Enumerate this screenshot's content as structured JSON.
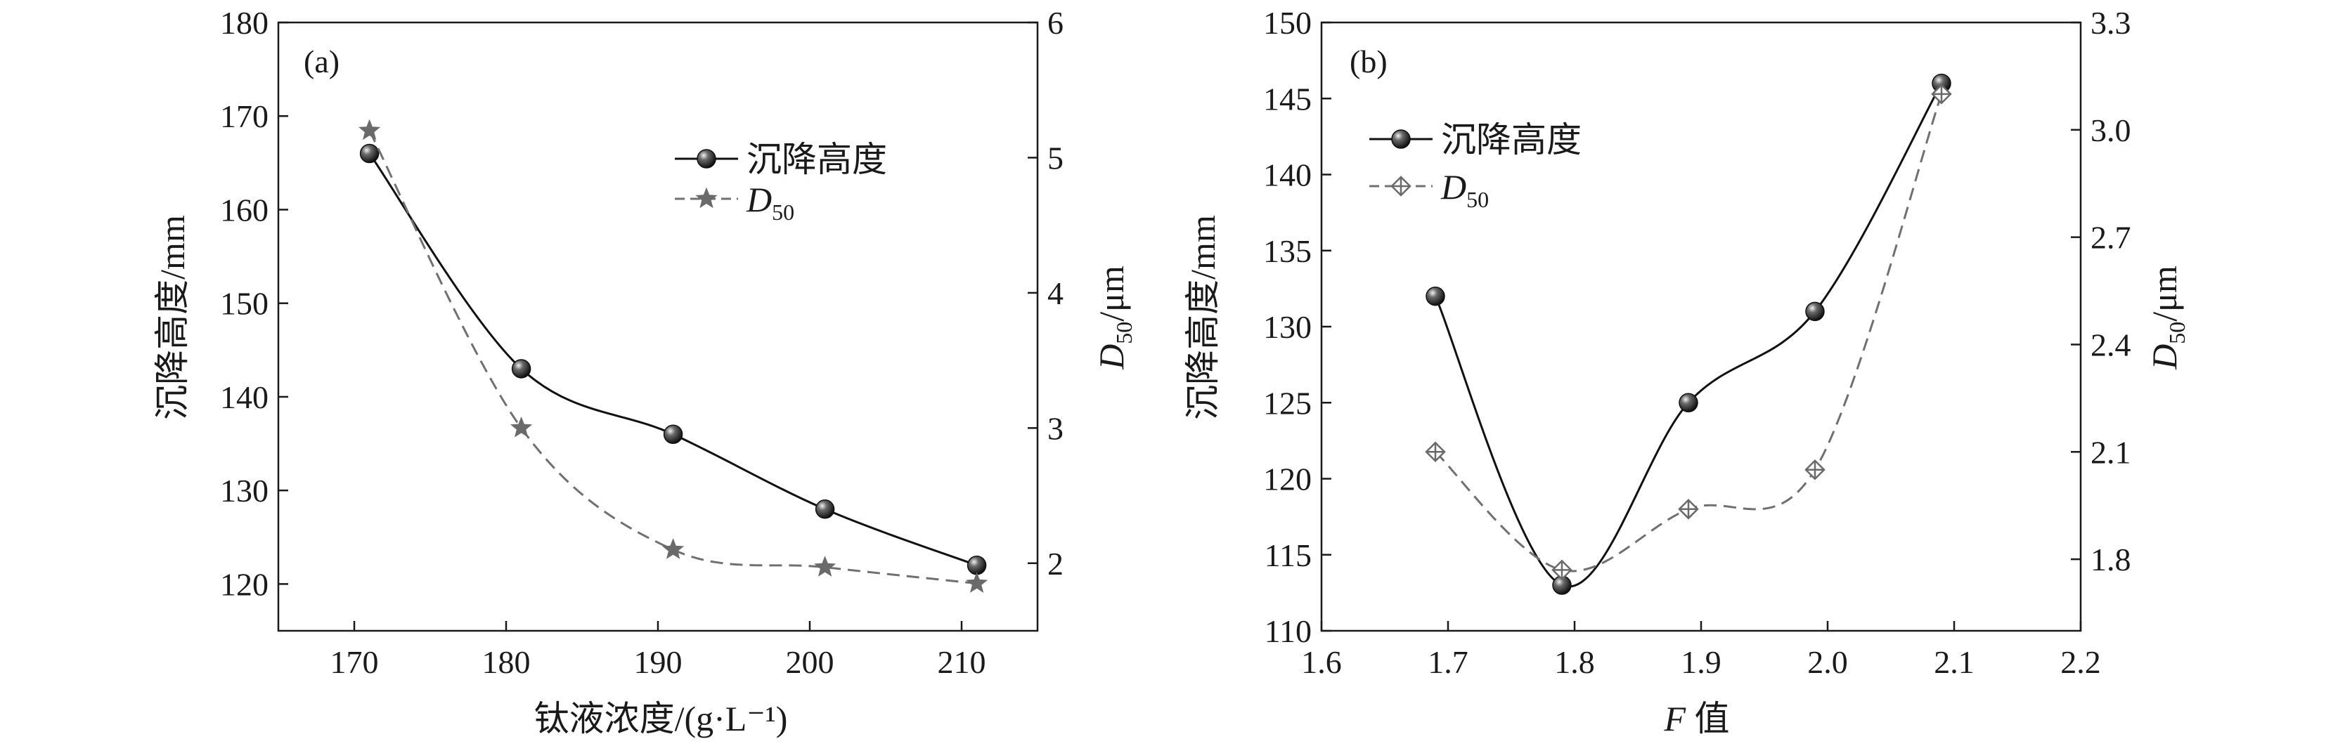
{
  "chart_data": [
    {
      "type": "line",
      "panel_label": "(a)",
      "xlabel": "钛液浓度/(g·L⁻¹)",
      "ylabel": "沉降高度/mm",
      "y2label_main": "D",
      "y2label_sub": "50",
      "y2label_unit": "/μm",
      "xlim": [
        165,
        215
      ],
      "ylim": [
        115,
        180
      ],
      "y2lim": [
        1.5,
        6
      ],
      "xticks": [
        170,
        180,
        190,
        200,
        210
      ],
      "yticks": [
        120,
        130,
        140,
        150,
        160,
        170,
        180
      ],
      "y2ticks": [
        2,
        3,
        4,
        5,
        6
      ],
      "legend_position": "top-right",
      "series": [
        {
          "name": "沉降高度",
          "axis": "left",
          "marker": "sphere",
          "line": "solid",
          "x": [
            171,
            181,
            191,
            201,
            211
          ],
          "y": [
            166,
            143,
            136,
            128,
            122
          ]
        },
        {
          "name_main": "D",
          "name_sub": "50",
          "axis": "right",
          "marker": "star",
          "line": "dashed",
          "x": [
            171,
            181,
            191,
            201,
            211
          ],
          "y": [
            5.2,
            3.0,
            2.1,
            1.97,
            1.85
          ]
        }
      ]
    },
    {
      "type": "line",
      "panel_label": "(b)",
      "xlabel_main": "F",
      "xlabel_suffix": " 值",
      "ylabel": "沉降高度/mm",
      "y2label_main": "D",
      "y2label_sub": "50",
      "y2label_unit": "/μm",
      "xlim": [
        1.6,
        2.2
      ],
      "ylim": [
        110,
        150
      ],
      "y2lim": [
        1.6,
        3.3
      ],
      "xticks": [
        "1.6",
        "1.7",
        "1.8",
        "1.9",
        "2.0",
        "2.1",
        "2.2"
      ],
      "yticks": [
        110,
        115,
        120,
        125,
        130,
        135,
        140,
        145,
        150
      ],
      "y2ticks": [
        "1.8",
        "2.1",
        "2.4",
        "2.7",
        "3.0",
        "3.3"
      ],
      "legend_position": "top-left",
      "series": [
        {
          "name": "沉降高度",
          "axis": "left",
          "marker": "sphere",
          "line": "solid",
          "x": [
            1.69,
            1.79,
            1.89,
            1.99,
            2.09
          ],
          "y": [
            132,
            113,
            125,
            131,
            146
          ]
        },
        {
          "name_main": "D",
          "name_sub": "50",
          "axis": "right",
          "marker": "crossed-diamond",
          "line": "dashed",
          "x": [
            1.69,
            1.79,
            1.89,
            1.99,
            2.09
          ],
          "y": [
            2.1,
            1.77,
            1.94,
            2.05,
            3.1
          ]
        }
      ]
    }
  ],
  "colors": {
    "axis": "#1a1a1a",
    "solid_line": "#111111",
    "dashed_line": "#707070",
    "marker_dark": "#222222",
    "marker_gray": "#6a6a6a"
  }
}
